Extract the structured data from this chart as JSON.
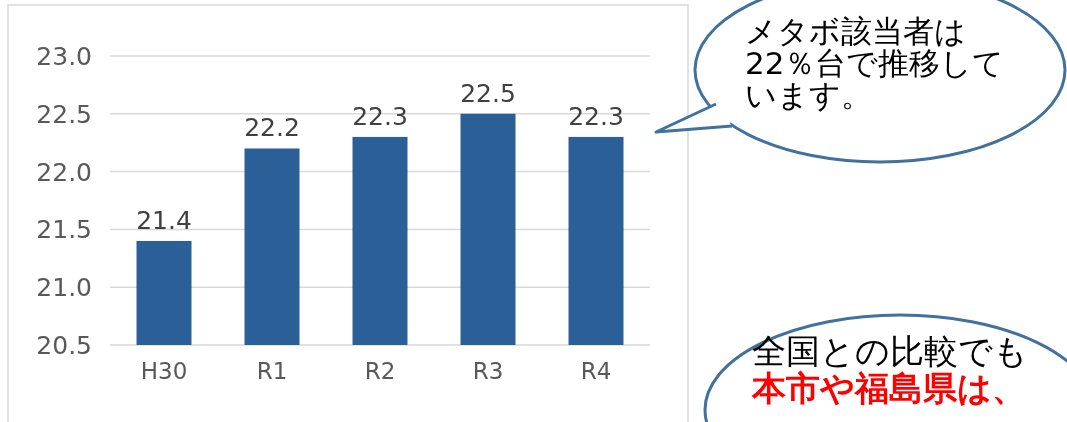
{
  "chart_data": {
    "type": "bar",
    "categories": [
      "H30",
      "R1",
      "R2",
      "R3",
      "R4"
    ],
    "values": [
      21.4,
      22.2,
      22.3,
      22.5,
      22.3
    ],
    "color": "#2a5f98",
    "ylim": [
      20.5,
      23.0
    ],
    "yticks": [
      {
        "value": 20.5,
        "label": "20.5"
      },
      {
        "value": 21.0,
        "label": "21.0"
      },
      {
        "value": 21.5,
        "label": "21.5"
      },
      {
        "value": 22.0,
        "label": "22.0"
      },
      {
        "value": 22.5,
        "label": "22.5"
      },
      {
        "value": 23.0,
        "label": "23.0"
      }
    ],
    "grid": "y",
    "data_labels": true,
    "annotations": [
      "メタボ該当者は22％台で推移しています。",
      "全国との比較でも",
      "本市や福島県は、"
    ]
  }
}
